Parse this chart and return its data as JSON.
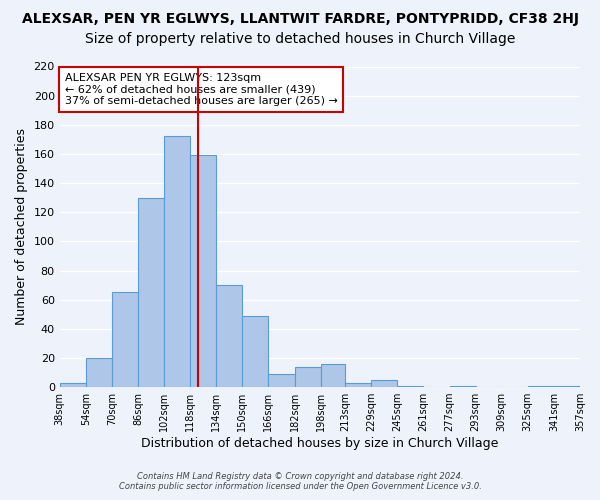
{
  "title": "ALEXSAR, PEN YR EGLWYS, LLANTWIT FARDRE, PONTYPRIDD, CF38 2HJ",
  "subtitle": "Size of property relative to detached houses in Church Village",
  "xlabel": "Distribution of detached houses by size in Church Village",
  "ylabel": "Number of detached properties",
  "bar_values": [
    3,
    20,
    65,
    130,
    172,
    159,
    70,
    49,
    9,
    14,
    16,
    3,
    5,
    1,
    0,
    1,
    0,
    0,
    1,
    1
  ],
  "bin_edges": [
    38,
    54,
    70,
    86,
    102,
    118,
    134,
    150,
    166,
    182,
    198,
    213,
    229,
    245,
    261,
    277,
    293,
    309,
    325,
    341,
    357
  ],
  "bin_labels": [
    "38sqm",
    "54sqm",
    "70sqm",
    "86sqm",
    "102sqm",
    "118sqm",
    "134sqm",
    "150sqm",
    "166sqm",
    "182sqm",
    "198sqm",
    "213sqm",
    "229sqm",
    "245sqm",
    "261sqm",
    "277sqm",
    "293sqm",
    "309sqm",
    "325sqm",
    "341sqm",
    "357sqm"
  ],
  "bar_color": "#aec6e8",
  "bar_edge_color": "#5b9bd5",
  "vline_x": 123,
  "vline_color": "#cc0000",
  "ylim": [
    0,
    220
  ],
  "yticks": [
    0,
    20,
    40,
    60,
    80,
    100,
    120,
    140,
    160,
    180,
    200,
    220
  ],
  "annotation_title": "ALEXSAR PEN YR EGLWYS: 123sqm",
  "annotation_line1": "← 62% of detached houses are smaller (439)",
  "annotation_line2": "37% of semi-detached houses are larger (265) →",
  "annotation_box_color": "#ffffff",
  "annotation_box_edge_color": "#cc0000",
  "footer_line1": "Contains HM Land Registry data © Crown copyright and database right 2024.",
  "footer_line2": "Contains public sector information licensed under the Open Government Licence v3.0.",
  "bg_color": "#eef3fb",
  "grid_color": "#ffffff",
  "title_fontsize": 10,
  "subtitle_fontsize": 10,
  "axis_fontsize": 9
}
